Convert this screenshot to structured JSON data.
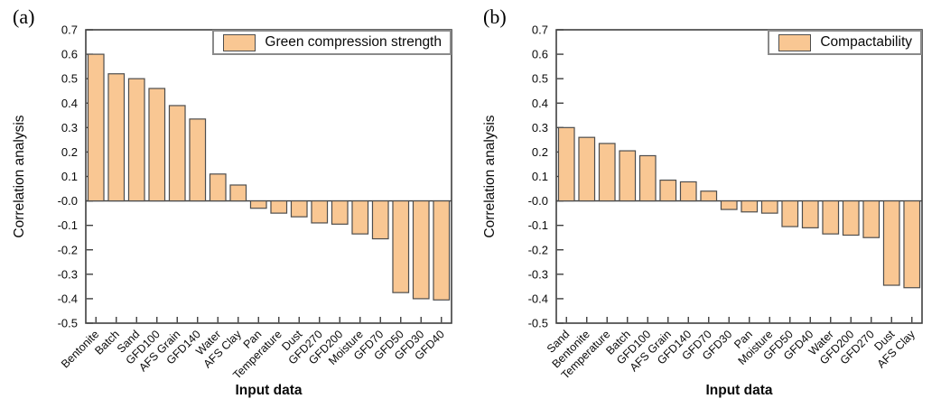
{
  "figure": {
    "background": "#ffffff"
  },
  "chart_data": [
    {
      "type": "bar",
      "panel_label": "(a)",
      "legend": "Green compression strength",
      "xlabel": "Input data",
      "ylabel": "Correlation analysis",
      "ylim": [
        -0.5,
        0.7
      ],
      "ytick_step": 0.1,
      "grid": false,
      "legend_position": "top-right-inside",
      "bar_color": "#F9C793",
      "bar_border_color": "#4D4D4D",
      "axis_color": "#3F3F3F",
      "categories": [
        "Bentonite",
        "Batch",
        "Sand",
        "GFD100",
        "AFS Grain",
        "GFD140",
        "Water",
        "AFS Clay",
        "Pan",
        "Temperature",
        "Dust",
        "GFD270",
        "GFD200",
        "Moisture",
        "GFD70",
        "GFD50",
        "GFD30",
        "GFD40"
      ],
      "values": [
        0.6,
        0.52,
        0.5,
        0.46,
        0.39,
        0.335,
        0.11,
        0.065,
        -0.03,
        -0.05,
        -0.065,
        -0.09,
        -0.095,
        -0.135,
        -0.155,
        -0.375,
        -0.4,
        -0.405
      ]
    },
    {
      "type": "bar",
      "panel_label": "(b)",
      "legend": "Compactability",
      "xlabel": "Input data",
      "ylabel": "Correlation analysis",
      "ylim": [
        -0.5,
        0.7
      ],
      "ytick_step": 0.1,
      "grid": false,
      "legend_position": "top-right-inside",
      "bar_color": "#F9C793",
      "bar_border_color": "#4D4D4D",
      "axis_color": "#3F3F3F",
      "categories": [
        "Sand",
        "Bentonite",
        "Temperature",
        "Batch",
        "GFD100",
        "AFS Grain",
        "GFD140",
        "GFD70",
        "GFD30",
        "Pan",
        "Moisture",
        "GFD50",
        "GFD40",
        "Water",
        "GFD200",
        "GFD270",
        "Dust",
        "AFS Clay"
      ],
      "values": [
        0.3,
        0.26,
        0.235,
        0.205,
        0.185,
        0.085,
        0.078,
        0.04,
        -0.035,
        -0.045,
        -0.05,
        -0.105,
        -0.11,
        -0.135,
        -0.14,
        -0.15,
        -0.345,
        -0.355
      ]
    }
  ]
}
